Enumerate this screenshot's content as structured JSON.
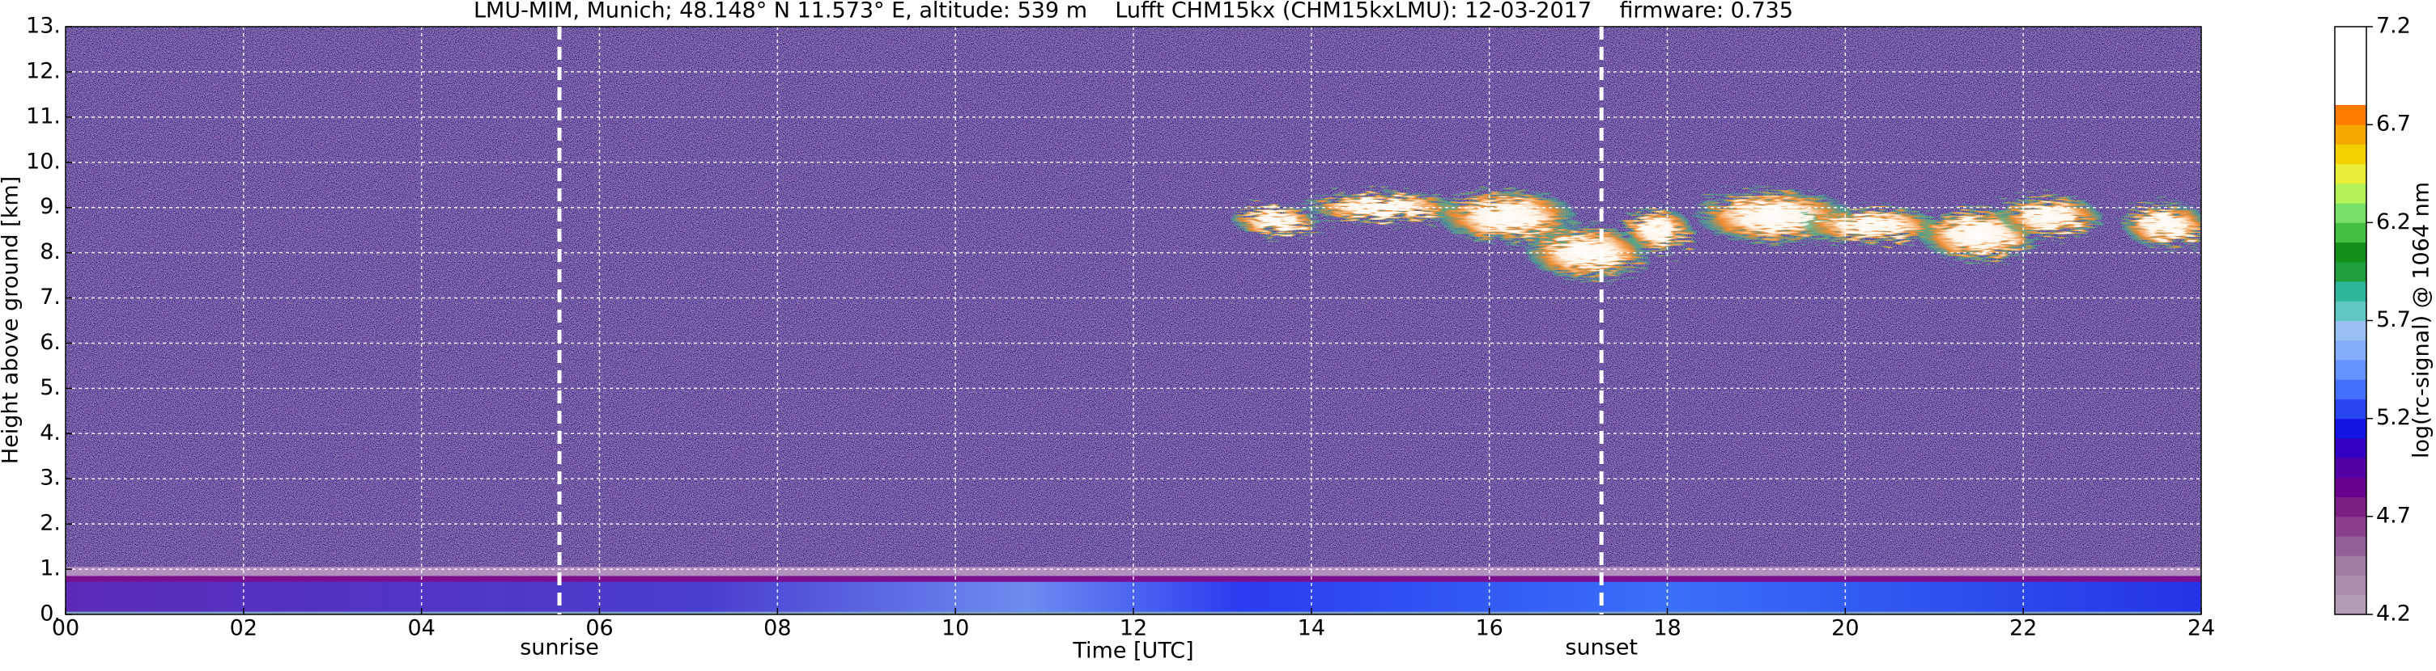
{
  "chart_data": {
    "type": "heatmap",
    "title": "LMU-MIM, Munich; 48.148° N 11.573° E, altitude: 539 m    Lufft CHM15kx (CHM15kxLMU): 12-03-2017    firmware: 0.735",
    "xlabel": "Time [UTC]",
    "ylabel": "Height above ground [km]",
    "xlim": [
      0,
      24
    ],
    "xticks": [
      {
        "value": 0,
        "label": "00"
      },
      {
        "value": 2,
        "label": "02"
      },
      {
        "value": 4,
        "label": "04"
      },
      {
        "value": 6,
        "label": "06"
      },
      {
        "value": 8,
        "label": "08"
      },
      10,
      12,
      14,
      16,
      18,
      20,
      22,
      24
    ],
    "ylim": [
      0,
      13
    ],
    "yticks": [
      {
        "value": 0,
        "label": "0."
      },
      {
        "value": 1,
        "label": "1."
      },
      {
        "value": 2,
        "label": "2."
      },
      {
        "value": 3,
        "label": "3."
      },
      {
        "value": 4,
        "label": "4."
      },
      {
        "value": 5,
        "label": "5."
      },
      {
        "value": 6,
        "label": "6."
      },
      {
        "value": 7,
        "label": "7."
      },
      {
        "value": 8,
        "label": "8."
      },
      {
        "value": 9,
        "label": "9."
      },
      {
        "value": 10,
        "label": "10."
      },
      {
        "value": 11,
        "label": "11."
      },
      {
        "value": 12,
        "label": "12."
      },
      {
        "value": 13,
        "label": "13."
      }
    ],
    "grid": true,
    "annotations": [
      {
        "text": "sunrise",
        "x": 5.55
      },
      {
        "text": "sunset",
        "x": 17.26
      }
    ],
    "colorbar": {
      "label": "log(rc-signal) @ 1064 nm",
      "lim": [
        4.2,
        7.2
      ],
      "ticks": [
        4.2,
        4.7,
        5.2,
        5.7,
        6.2,
        6.7,
        7.2
      ],
      "colors": [
        "#b29db4",
        "#a98daa",
        "#9f7ca1",
        "#955f99",
        "#893f8c",
        "#7c1f82",
        "#6a008e",
        "#5200a3",
        "#3300c4",
        "#1414e2",
        "#2a46f2",
        "#4270fa",
        "#6692fd",
        "#84aefa",
        "#98c0f0",
        "#5fc6c0",
        "#2fb59a",
        "#1f9f3e",
        "#12901a",
        "#45bf42",
        "#78e066",
        "#b4f057",
        "#e8ee38",
        "#f4d000",
        "#f7a800",
        "#ff7c00",
        "#ff3c00",
        "#f00000",
        "#f2c2c2",
        "#e8e8e8"
      ]
    }
  }
}
